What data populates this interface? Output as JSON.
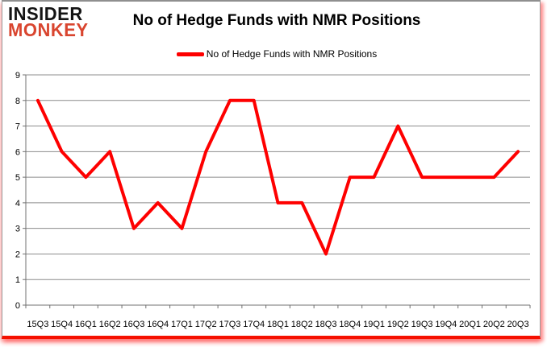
{
  "logo": {
    "line1": "INSIDER",
    "line2": "MONKEY"
  },
  "title": "No of Hedge Funds with NMR Positions",
  "legend": {
    "label": "No of Hedge Funds with NMR Positions"
  },
  "colors": {
    "line": "#FE0000",
    "logo_insider": "#141414",
    "logo_monkey": "#D9452F",
    "gridline": "#8C8C8C",
    "axis": "#707070",
    "text": "#000000",
    "frame_border": "#9A9A9A",
    "frame_bottom": "#F51000"
  },
  "chart_data": {
    "type": "line",
    "title": "No of Hedge Funds with NMR Positions",
    "categories": [
      "15Q3",
      "15Q4",
      "16Q1",
      "16Q2",
      "16Q3",
      "16Q4",
      "17Q1",
      "17Q2",
      "17Q3",
      "17Q4",
      "18Q1",
      "18Q2",
      "18Q3",
      "18Q4",
      "19Q1",
      "19Q2",
      "19Q3",
      "19Q4",
      "20Q1",
      "20Q2",
      "20Q3"
    ],
    "series": [
      {
        "name": "No of Hedge Funds with NMR Positions",
        "values": [
          8,
          6,
          5,
          6,
          3,
          4,
          3,
          6,
          8,
          8,
          4,
          4,
          2,
          5,
          5,
          7,
          5,
          5,
          5,
          5,
          6
        ]
      }
    ],
    "xlabel": "",
    "ylabel": "",
    "ylim": [
      0,
      9
    ],
    "ytick_step": 1,
    "grid": true,
    "legend_position": "top-center",
    "line_width": 4
  }
}
